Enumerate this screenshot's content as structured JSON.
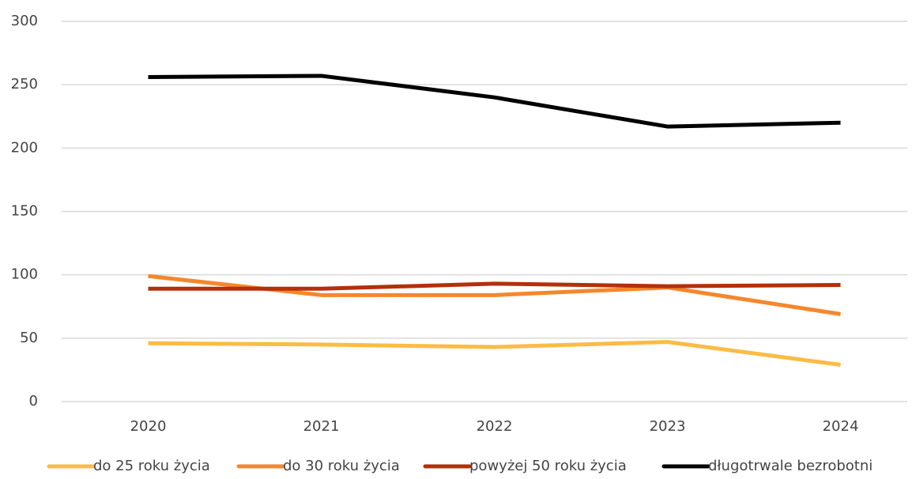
{
  "chart_data": {
    "type": "line",
    "categories": [
      "2020",
      "2021",
      "2022",
      "2023",
      "2024"
    ],
    "series": [
      {
        "name": "do 25 roku życia",
        "color": "#fbbc45",
        "values": [
          46,
          45,
          43,
          47,
          29
        ]
      },
      {
        "name": "do 30 roku życia",
        "color": "#f5872b",
        "values": [
          99,
          84,
          84,
          90,
          69
        ]
      },
      {
        "name": "powyżej 50 roku życia",
        "color": "#b3300b",
        "values": [
          89,
          89,
          93,
          91,
          92
        ]
      },
      {
        "name": "długotrwale bezrobotni",
        "color": "#000000",
        "values": [
          256,
          257,
          240,
          217,
          220
        ]
      }
    ],
    "ylim": [
      0,
      300
    ],
    "yticks": [
      0,
      50,
      100,
      150,
      200,
      250,
      300
    ],
    "grid": true,
    "legend": "bottom"
  }
}
